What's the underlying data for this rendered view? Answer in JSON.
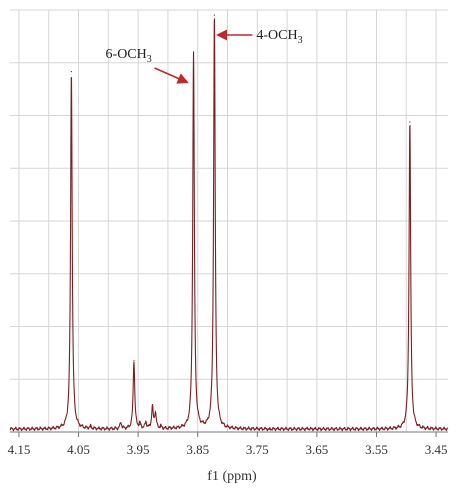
{
  "chart_data": {
    "type": "line",
    "title": "",
    "xlabel": "f1 (ppm)",
    "ylabel": "",
    "x_reversed": true,
    "xlim": [
      3.43,
      4.165
    ],
    "ylim": [
      0,
      1
    ],
    "x_ticks": [
      4.15,
      4.05,
      3.95,
      3.85,
      3.75,
      3.65,
      3.55,
      3.45
    ],
    "x_tick_labels": [
      "4.15",
      "4.05",
      "3.95",
      "3.85",
      "3.75",
      "3.65",
      "3.55",
      "3.45"
    ],
    "grid": true,
    "line_color": "#7a1f22",
    "annotation_color": "#c0282d",
    "baseline": 0.007,
    "peaks": [
      {
        "x": 4.062,
        "y": 0.86
      },
      {
        "x": 4.03,
        "y": 0.012
      },
      {
        "x": 3.979,
        "y": 0.022
      },
      {
        "x": 3.957,
        "y": 0.17
      },
      {
        "x": 3.947,
        "y": 0.018
      },
      {
        "x": 3.937,
        "y": 0.022
      },
      {
        "x": 3.926,
        "y": 0.058
      },
      {
        "x": 3.921,
        "y": 0.044
      },
      {
        "x": 3.912,
        "y": 0.012
      },
      {
        "x": 3.895,
        "y": 0.008
      },
      {
        "x": 3.857,
        "y": 0.905
      },
      {
        "x": 3.822,
        "y": 0.995
      },
      {
        "x": 3.73,
        "y": 0.006
      },
      {
        "x": 3.665,
        "y": 0.008
      },
      {
        "x": 3.494,
        "y": 0.74
      }
    ],
    "annotations": [
      {
        "label_main": "6-OCH",
        "label_sub": "3",
        "peak_x": 3.857
      },
      {
        "label_main": "4-OCH",
        "label_sub": "3",
        "peak_x": 3.822
      }
    ]
  }
}
